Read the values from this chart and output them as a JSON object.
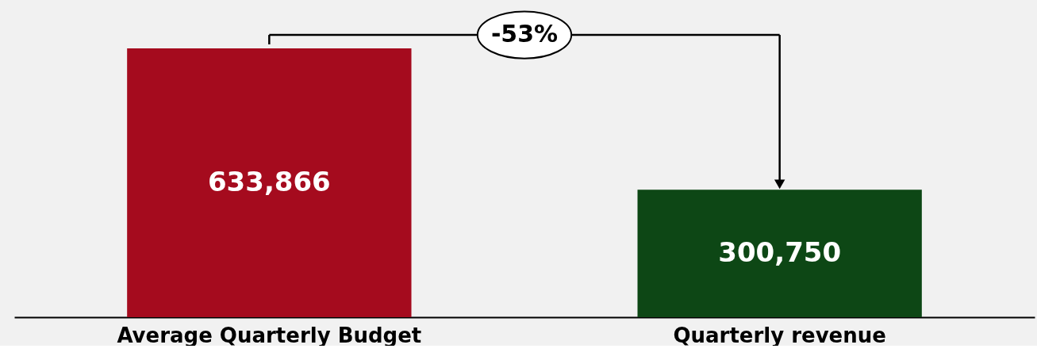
{
  "chart_data": {
    "type": "bar",
    "categories": [
      "Average Quarterly Budget",
      "Quarterly revenue"
    ],
    "values": [
      633866,
      300750
    ],
    "colors": [
      "#a50b1e",
      "#0d4715"
    ],
    "value_labels": [
      "633,866",
      "300,750"
    ],
    "annotations": [
      "-53%"
    ],
    "tick_labels": "x",
    "grid": false
  }
}
